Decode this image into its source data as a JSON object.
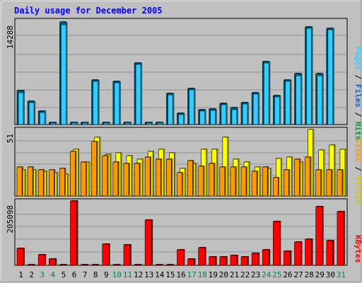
{
  "chart_data": [
    {
      "type": "bar",
      "title": "Daily usage for December 2005",
      "ylabel": "Pages / Files / Hits",
      "ylim": [
        0,
        14288
      ],
      "y_tick_label": "14288",
      "categories": [
        "1",
        "2",
        "3",
        "4",
        "5",
        "6",
        "7",
        "8",
        "9",
        "10",
        "11",
        "12",
        "13",
        "14",
        "15",
        "16",
        "17",
        "18",
        "19",
        "20",
        "21",
        "22",
        "23",
        "24",
        "25",
        "26",
        "27",
        "28",
        "29",
        "30",
        "31"
      ],
      "weekend_days": [
        "3",
        "4",
        "10",
        "11",
        "17",
        "18",
        "24",
        "25",
        "31"
      ],
      "series": [
        {
          "name": "Hits",
          "color": "#0099cc",
          "values": [
            4700,
            3200,
            1900,
            300,
            14200,
            300,
            300,
            6200,
            300,
            6000,
            300,
            8500,
            300,
            300,
            4300,
            1600,
            5000,
            2100,
            2200,
            2900,
            2300,
            3000,
            4400,
            8700,
            4000,
            6200,
            7000,
            13500,
            7000,
            13300,
            0
          ]
        },
        {
          "name": "Files",
          "color": "#0099cc",
          "values": [
            4600,
            3100,
            1800,
            250,
            14000,
            250,
            250,
            6100,
            250,
            5900,
            250,
            8400,
            250,
            250,
            4200,
            1500,
            4900,
            2000,
            2100,
            2800,
            2200,
            2900,
            4300,
            8600,
            3900,
            6100,
            6900,
            13400,
            6900,
            13200,
            0
          ]
        },
        {
          "name": "Pages",
          "color": "#33ccff",
          "values": [
            4400,
            3000,
            1700,
            200,
            13800,
            200,
            200,
            6000,
            200,
            5800,
            200,
            8300,
            200,
            200,
            4100,
            1400,
            4800,
            1900,
            2000,
            2700,
            2100,
            2800,
            4200,
            8500,
            3800,
            6000,
            6800,
            13300,
            6800,
            13100,
            0
          ]
        }
      ]
    },
    {
      "type": "bar",
      "ylabel": "Sites / Visits",
      "ylim": [
        0,
        51
      ],
      "y_tick_label": "51",
      "categories": [
        "1",
        "2",
        "3",
        "4",
        "5",
        "6",
        "7",
        "8",
        "9",
        "10",
        "11",
        "12",
        "13",
        "14",
        "15",
        "16",
        "17",
        "18",
        "19",
        "20",
        "21",
        "22",
        "23",
        "24",
        "25",
        "26",
        "27",
        "28",
        "29",
        "30",
        "31"
      ],
      "series": [
        {
          "name": "Visits",
          "color": "#ffff00",
          "values": [
            20,
            20,
            19,
            18,
            17,
            36,
            26,
            45,
            32,
            33,
            31,
            28,
            34,
            36,
            33,
            21,
            25,
            36,
            36,
            45,
            28,
            26,
            22,
            21,
            29,
            30,
            26,
            51,
            35,
            39,
            36
          ]
        },
        {
          "name": "Sites",
          "color": "#ff9900",
          "values": [
            22,
            22,
            20,
            20,
            21,
            34,
            26,
            42,
            31,
            26,
            25,
            25,
            30,
            28,
            28,
            18,
            27,
            23,
            25,
            22,
            22,
            22,
            19,
            22,
            14,
            20,
            28,
            30,
            20,
            20,
            20
          ]
        }
      ]
    },
    {
      "type": "bar",
      "ylabel": "KBytes",
      "ylim": [
        0,
        205098
      ],
      "y_tick_label": "205098",
      "categories": [
        "1",
        "2",
        "3",
        "4",
        "5",
        "6",
        "7",
        "8",
        "9",
        "10",
        "11",
        "12",
        "13",
        "14",
        "15",
        "16",
        "17",
        "18",
        "19",
        "20",
        "21",
        "22",
        "23",
        "24",
        "25",
        "26",
        "27",
        "28",
        "29",
        "30",
        "31"
      ],
      "series": [
        {
          "name": "KBytes",
          "color": "#ff0000",
          "values": [
            55000,
            1000,
            34000,
            21000,
            1000,
            205000,
            1000,
            1000,
            68000,
            1000,
            66000,
            1000,
            144000,
            1000,
            1000,
            50000,
            20000,
            56000,
            26000,
            26000,
            32000,
            28000,
            38000,
            50000,
            140000,
            44000,
            74000,
            84000,
            188000,
            80000,
            172000
          ]
        }
      ]
    }
  ]
}
